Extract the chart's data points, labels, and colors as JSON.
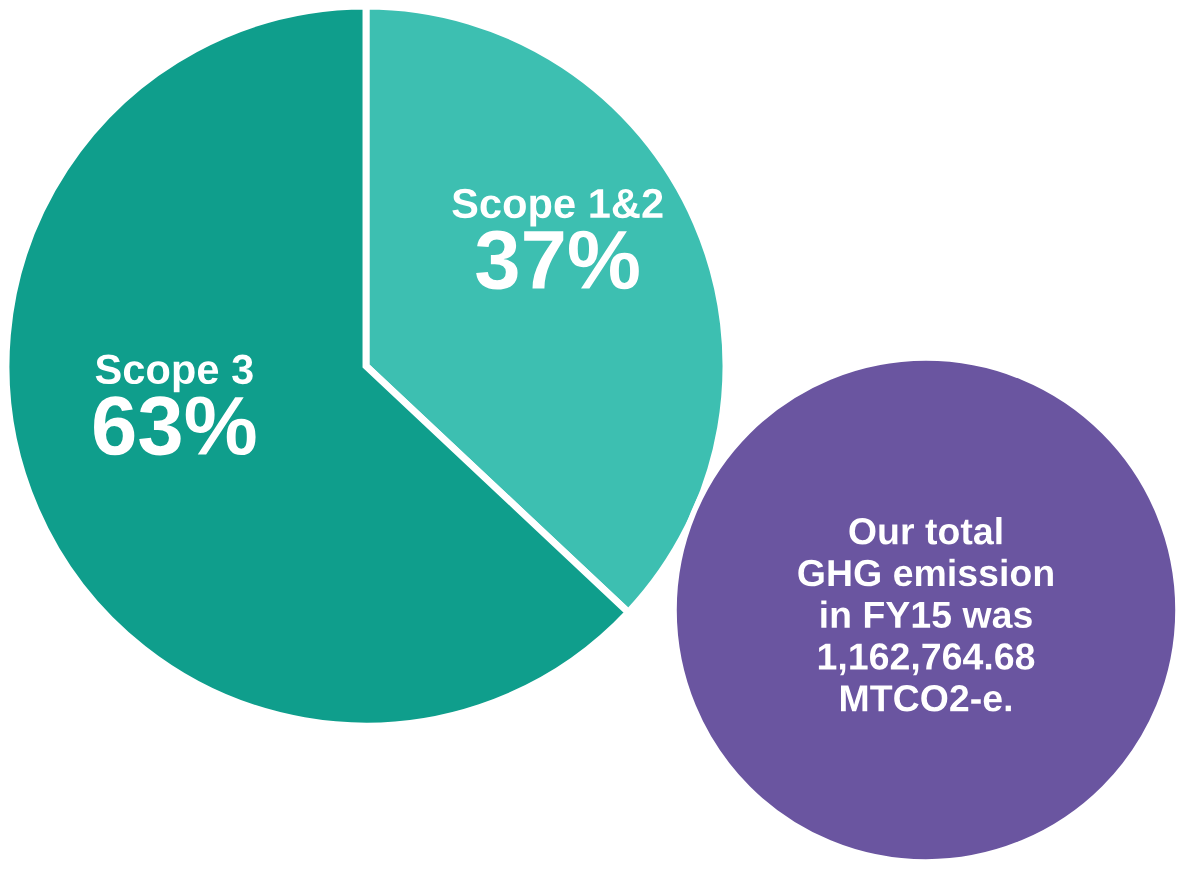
{
  "chart_data": {
    "type": "pie",
    "categories": [
      "Scope 1&2",
      "Scope 3"
    ],
    "values": [
      37,
      63
    ],
    "value_labels": [
      "37%",
      "63%"
    ],
    "colors": [
      "#3dbfb1",
      "#0f9e8c"
    ],
    "annotations": [
      "Our total\nGHG emission\nin FY15 was\n1,162,764.68\nMTCO2-e."
    ],
    "legend": false
  }
}
